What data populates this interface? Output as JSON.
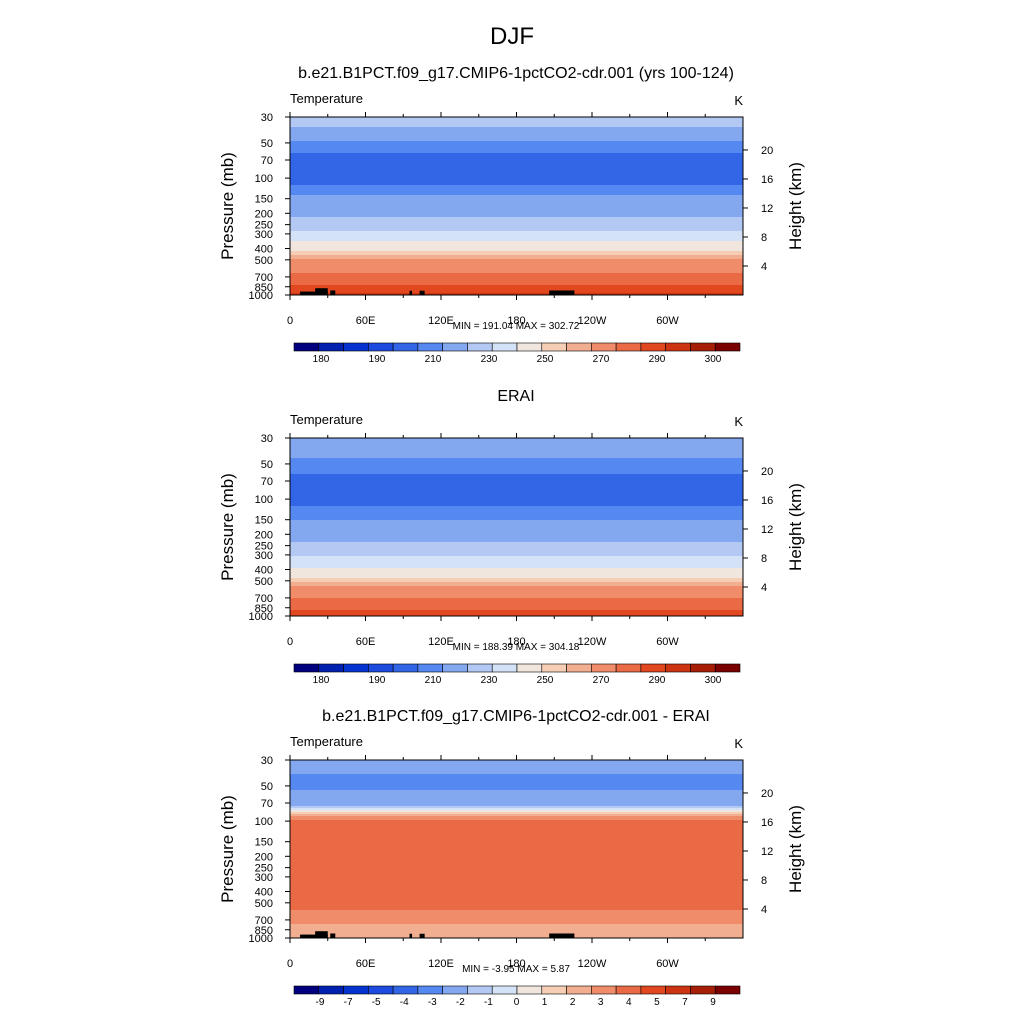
{
  "figure_title": "DJF",
  "colors": {
    "temperature_scale": [
      "#00007f",
      "#0020b0",
      "#0533cf",
      "#1d4bdf",
      "#3366e6",
      "#5688f2",
      "#84a8f0",
      "#b3c9f4",
      "#d3e2f6",
      "#f1e6de",
      "#f6cdb5",
      "#f2ae90",
      "#f08c6a",
      "#ea6a45",
      "#e2481f",
      "#cd3412",
      "#a71e07",
      "#7a0000"
    ],
    "difference_scale": [
      "#00007f",
      "#0020b0",
      "#0533cf",
      "#1d4bdf",
      "#3366e6",
      "#5688f2",
      "#84a8f0",
      "#b3c9f4",
      "#d3e2f6",
      "#f1e6de",
      "#f6cdb5",
      "#f2ae90",
      "#f08c6a",
      "#ea6a45",
      "#e2481f",
      "#cd3412",
      "#a71e07",
      "#7a0000"
    ],
    "topography": "#000000"
  },
  "chart_data": [
    {
      "type": "heatmap",
      "title": "b.e21.B1PCT.f09_g17.CMIP6-1pctCO2-cdr.001 (yrs 100-124)",
      "left_label": "Temperature",
      "units": "K",
      "ylabel": "Pressure (mb)",
      "ylabel_right": "Height (km)",
      "x_ticks": [
        "0",
        "60E",
        "120E",
        "180",
        "120W",
        "60W"
      ],
      "y_ticks": [
        "30",
        "50",
        "70",
        "100",
        "150",
        "200",
        "250",
        "300",
        "400",
        "500",
        "700",
        "850",
        "1000"
      ],
      "y_ticks_right": [
        "20",
        "16",
        "12",
        "8",
        "4"
      ],
      "stats": "MIN = 191.04  MAX = 302.72",
      "min": 191.04,
      "max": 302.72,
      "colorbar_labels": [
        "180",
        "190",
        "210",
        "230",
        "250",
        "270",
        "290",
        "300"
      ],
      "profile": [
        [
          30,
          225
        ],
        [
          40,
          217
        ],
        [
          50,
          208
        ],
        [
          60,
          205
        ],
        [
          70,
          203
        ],
        [
          100,
          203
        ],
        [
          115,
          205
        ],
        [
          150,
          212
        ],
        [
          200,
          218
        ],
        [
          250,
          225
        ],
        [
          300,
          233
        ],
        [
          400,
          248
        ],
        [
          500,
          260
        ],
        [
          600,
          268
        ],
        [
          700,
          273
        ],
        [
          850,
          282
        ],
        [
          925,
          288
        ],
        [
          1000,
          291
        ]
      ]
    },
    {
      "type": "heatmap",
      "title": "ERAI",
      "left_label": "Temperature",
      "units": "K",
      "ylabel": "Pressure (mb)",
      "ylabel_right": "Height (km)",
      "x_ticks": [
        "0",
        "60E",
        "120E",
        "180",
        "120W",
        "60W"
      ],
      "y_ticks": [
        "30",
        "50",
        "70",
        "100",
        "150",
        "200",
        "250",
        "300",
        "400",
        "500",
        "700",
        "850",
        "1000"
      ],
      "y_ticks_right": [
        "20",
        "16",
        "12",
        "8",
        "4"
      ],
      "stats": "MIN = 188.39  MAX = 304.18",
      "min": 188.39,
      "max": 304.18,
      "colorbar_labels": [
        "180",
        "190",
        "210",
        "230",
        "250",
        "270",
        "290",
        "300"
      ],
      "profile": [
        [
          30,
          218
        ],
        [
          40,
          212
        ],
        [
          50,
          207
        ],
        [
          60,
          205
        ],
        [
          70,
          203
        ],
        [
          100,
          200
        ],
        [
          115,
          205
        ],
        [
          150,
          210
        ],
        [
          200,
          216
        ],
        [
          250,
          222
        ],
        [
          300,
          228
        ],
        [
          400,
          242
        ],
        [
          500,
          254
        ],
        [
          600,
          263
        ],
        [
          700,
          270
        ],
        [
          850,
          278
        ],
        [
          925,
          284
        ],
        [
          1000,
          288
        ]
      ]
    },
    {
      "type": "heatmap",
      "title": "b.e21.B1PCT.f09_g17.CMIP6-1pctCO2-cdr.001 - ERAI",
      "left_label": "Temperature",
      "units": "K",
      "ylabel": "Pressure (mb)",
      "ylabel_right": "Height (km)",
      "x_ticks": [
        "0",
        "60E",
        "120E",
        "180",
        "120W",
        "60W"
      ],
      "y_ticks": [
        "30",
        "50",
        "70",
        "100",
        "150",
        "200",
        "250",
        "300",
        "400",
        "500",
        "700",
        "850",
        "1000"
      ],
      "y_ticks_right": [
        "20",
        "16",
        "12",
        "8",
        "4"
      ],
      "stats": "MIN =  -3.95  MAX =   5.87",
      "min": -3.95,
      "max": 5.87,
      "colorbar_labels": [
        "-9",
        "-7",
        "-5",
        "-4",
        "-3",
        "-2",
        "-1",
        "0",
        "1",
        "2",
        "3",
        "4",
        "5",
        "7",
        "9"
      ],
      "profile": [
        [
          30,
          -1.5
        ],
        [
          40,
          -2
        ],
        [
          50,
          -2.2
        ],
        [
          70,
          -1.5
        ],
        [
          85,
          0.5
        ],
        [
          100,
          3.5
        ],
        [
          150,
          3.6
        ],
        [
          200,
          3.8
        ],
        [
          300,
          3.9
        ],
        [
          400,
          3.8
        ],
        [
          500,
          3.4
        ],
        [
          700,
          2.5
        ],
        [
          850,
          1.5
        ],
        [
          1000,
          1
        ]
      ]
    }
  ]
}
